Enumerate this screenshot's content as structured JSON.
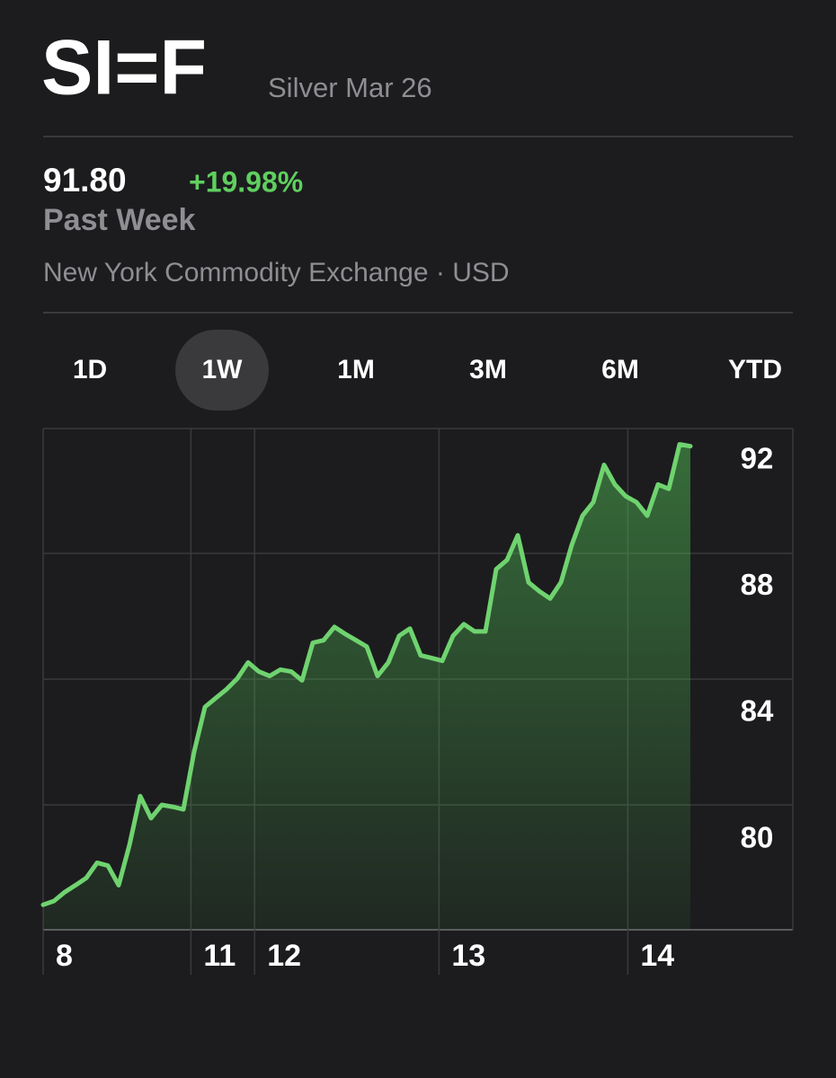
{
  "header": {
    "symbol": "SI=F",
    "name": "Silver Mar 26",
    "price": "91.80",
    "change": "+19.98%",
    "period": "Past Week",
    "exchange": "New York Commodity Exchange · USD"
  },
  "tabs": [
    "1D",
    "1W",
    "1M",
    "3M",
    "6M",
    "YTD"
  ],
  "selected_tab": "1W",
  "chart_data": {
    "type": "area",
    "x": [
      0,
      1,
      2,
      3,
      4,
      5,
      6,
      7,
      8,
      9,
      10,
      11,
      12,
      13,
      14,
      15,
      16,
      17,
      18,
      19,
      20,
      21,
      22,
      23,
      24,
      25,
      26,
      27,
      28,
      29,
      30,
      31,
      32,
      33,
      34,
      35,
      36,
      37,
      38,
      39,
      40,
      41,
      42,
      43,
      44,
      45,
      46,
      47,
      48,
      49,
      50,
      51,
      52,
      53,
      54,
      55,
      56,
      57,
      58,
      59,
      60
    ],
    "series": [
      {
        "name": "SI=F",
        "color": "#6fd36f",
        "values": [
          77.94,
          78.06,
          78.34,
          78.56,
          78.79,
          79.27,
          79.18,
          78.56,
          79.83,
          81.38,
          80.68,
          81.1,
          81.04,
          80.96,
          82.79,
          84.2,
          84.48,
          84.76,
          85.1,
          85.61,
          85.32,
          85.18,
          85.38,
          85.32,
          85.04,
          86.23,
          86.31,
          86.73,
          86.51,
          86.31,
          86.11,
          85.18,
          85.61,
          86.45,
          86.68,
          85.83,
          85.75,
          85.66,
          86.45,
          86.82,
          86.59,
          86.59,
          88.56,
          88.85,
          89.63,
          88.14,
          87.86,
          87.63,
          88.14,
          89.32,
          90.25,
          90.68,
          91.86,
          91.24,
          90.87,
          90.68,
          90.25,
          91.24,
          91.1,
          92.51,
          92.45
        ]
      }
    ],
    "xlim": [
      0,
      69.5
    ],
    "xticks": [
      {
        "value": 0,
        "label": "8"
      },
      {
        "value": 13.7,
        "label": "11"
      },
      {
        "value": 19.6,
        "label": "12"
      },
      {
        "value": 36.7,
        "label": "13"
      },
      {
        "value": 54.2,
        "label": "14"
      }
    ],
    "ylim": [
      77.15,
      93.01
    ],
    "yticks": [
      92,
      88,
      84,
      80
    ],
    "grid": true
  }
}
